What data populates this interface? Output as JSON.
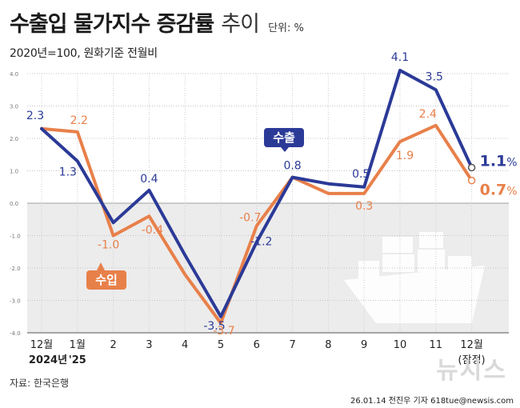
{
  "header": {
    "title": "수출입 물가지수 증감률",
    "title_light": "추이",
    "unit": "단위: %",
    "subtitle": "2020년=100, 원화기준 전월비"
  },
  "footer": {
    "source": "자료: 한국은행",
    "credit": "26.01.14 전진우 기자 618tue@newsis.com",
    "watermark": "뉴시스"
  },
  "chart_data": {
    "type": "line",
    "categories": [
      "12월",
      "1월",
      "2",
      "3",
      "4",
      "5",
      "6",
      "7",
      "8",
      "9",
      "10",
      "11",
      "12월"
    ],
    "category_sublabels": [
      "2024년",
      "'25",
      "",
      "",
      "",
      "",
      "",
      "",
      "",
      "",
      "",
      "",
      "(잠정)"
    ],
    "ylim": [
      -4.0,
      4.0
    ],
    "yticks": [
      "4.0",
      "3.0",
      "2.0",
      "1.0",
      "0.0",
      "-1.0",
      "-2.0",
      "-3.0",
      "-4.0"
    ],
    "series": [
      {
        "name": "수출",
        "color": "#2b3a97",
        "values": [
          2.3,
          1.3,
          -0.6,
          0.4,
          -1.6,
          -3.5,
          -1.2,
          0.8,
          0.6,
          0.5,
          4.1,
          3.5,
          1.1
        ],
        "labels": [
          "2.3",
          "1.3",
          "",
          "0.4",
          "",
          "-3.5",
          "-1.2",
          "0.8",
          "",
          "0.5",
          "4.1",
          "3.5",
          "1.1"
        ],
        "end_label": "1.1",
        "end_unit": "%"
      },
      {
        "name": "수입",
        "color": "#e8804a",
        "values": [
          2.3,
          2.2,
          -1.0,
          -0.4,
          -2.2,
          -3.7,
          -0.7,
          0.8,
          0.3,
          0.3,
          1.9,
          2.4,
          0.7
        ],
        "labels": [
          "",
          "2.2",
          "-1.0",
          "-0.4",
          "",
          "-3.7",
          "-0.7",
          "",
          "",
          "0.3",
          "1.9",
          "2.4",
          "0.7"
        ],
        "end_label": "0.7",
        "end_unit": "%"
      }
    ]
  }
}
